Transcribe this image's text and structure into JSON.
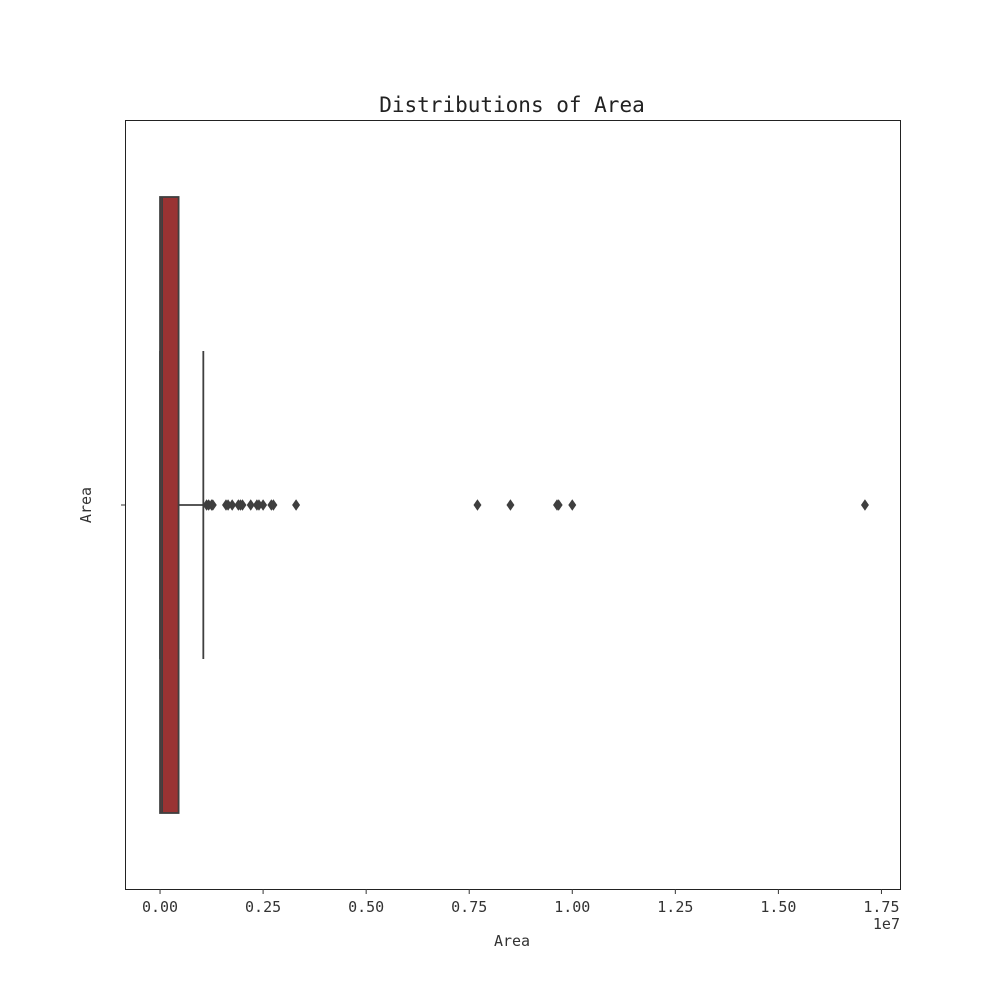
{
  "chart_data": {
    "type": "box",
    "orientation": "horizontal",
    "title": "Distributions of Area",
    "xlabel": "Area",
    "ylabel": "Area",
    "x_scale_label": "1e7",
    "xlim": [
      -0.085,
      1.795
    ],
    "x_ticks": [
      0.0,
      0.25,
      0.5,
      0.75,
      1.0,
      1.25,
      1.5,
      1.75
    ],
    "x_tick_labels": [
      "0.00",
      "0.25",
      "0.50",
      "0.75",
      "1.00",
      "1.25",
      "1.50",
      "1.75"
    ],
    "grid": false,
    "box": {
      "name": "Area",
      "whisker_low": 0.0,
      "q1": 0.0,
      "median": 0.005,
      "q3": 0.045,
      "whisker_high": 0.105
    },
    "outliers": [
      0.113,
      0.118,
      0.125,
      0.128,
      0.16,
      0.165,
      0.175,
      0.19,
      0.195,
      0.2,
      0.22,
      0.235,
      0.24,
      0.25,
      0.27,
      0.275,
      0.33,
      0.77,
      0.85,
      0.963,
      0.967,
      1.0,
      1.71
    ],
    "colors": {
      "box_fill": "#993333",
      "lines": "#3f3f3f",
      "outlier": "#3f3f3f"
    }
  }
}
